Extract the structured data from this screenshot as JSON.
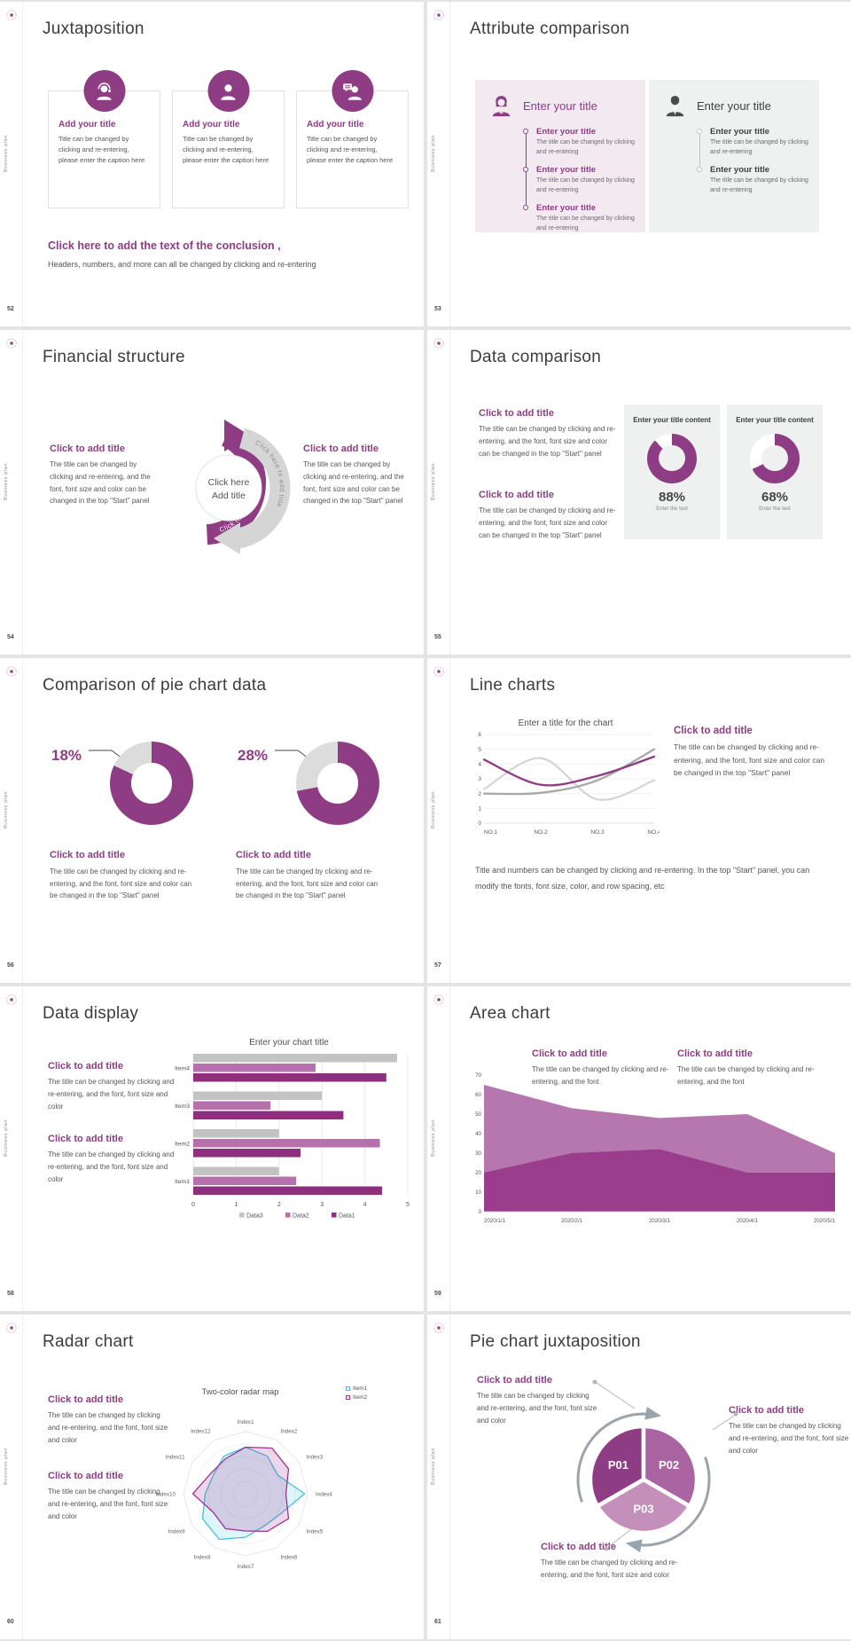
{
  "common": {
    "brand": "Business plan",
    "accent": "#8e3c84"
  },
  "strings": {
    "click_to_add_title": "Click to add title",
    "enter_your_title": "Enter your title",
    "body_start_panel": "The title can be changed by clicking and re-entering, and the font, font size and color can be changed in the top \"Start\" panel",
    "body_font_color": "The title can be changed by clicking and re-entering, and the font, font size and color",
    "body_font": "The title can be changed by clicking and re-entering, and the font",
    "body_short": "The title can be changed by clicking and re-entering"
  },
  "slides": {
    "s52": {
      "page": "52",
      "title": "Juxtaposition",
      "cards": [
        {
          "heading": "Add your title",
          "body": "Title can be changed by clicking and re-entering, please enter the caption here"
        },
        {
          "heading": "Add your title",
          "body": "Title can be changed by clicking and re-entering, please enter the caption here"
        },
        {
          "heading": "Add your title",
          "body": "Title can be changed by clicking and re-entering, please enter the caption here"
        }
      ],
      "conclusion_heading": "Click here to add the text of the conclusion ,",
      "conclusion_body": "Headers, numbers, and more can all be changed by clicking and re-entering"
    },
    "s53": {
      "page": "53",
      "title": "Attribute comparison",
      "left_heading": "Enter your title",
      "right_heading": "Enter your title",
      "left_items": [
        {
          "heading": "Enter your title",
          "body": "The title can be changed by clicking and re-entering"
        },
        {
          "heading": "Enter your title",
          "body": "The title can be changed by clicking and re-entering"
        },
        {
          "heading": "Enter your title",
          "body": "The title can be changed by clicking and re-entering"
        }
      ],
      "right_items": [
        {
          "heading": "Enter your title",
          "body": "The title can be changed by clicking and re-entering"
        },
        {
          "heading": "Enter your title",
          "body": "The title can be changed by clicking and re-entering"
        }
      ]
    },
    "s54": {
      "page": "54",
      "title": "Financial structure",
      "arc_label": "Click here to add title",
      "center_line1": "Click here",
      "center_line2": "Add title"
    },
    "s55": {
      "page": "55",
      "title": "Data comparison",
      "cards": [
        {
          "heading": "Enter your title content",
          "percent": "88%",
          "sub": "Enter the text"
        },
        {
          "heading": "Enter your title content",
          "percent": "68%",
          "sub": "Enter the text"
        }
      ]
    },
    "s56": {
      "page": "56",
      "title": "Comparison of pie chart data",
      "groups": [
        {
          "label": "18%"
        },
        {
          "label": "28%"
        }
      ]
    },
    "s57": {
      "page": "57",
      "title": "Line charts",
      "chart_title": "Enter a title for the chart",
      "note": "Title and numbers can be changed by clicking and re-entering. In the top \"Start\" panel, you can modify the fonts, font size, color, and row spacing, etc"
    },
    "s58": {
      "page": "58",
      "title": "Data display",
      "chart_title": "Enter your chart title"
    },
    "s59": {
      "page": "59",
      "title": "Area chart"
    },
    "s60": {
      "page": "60",
      "title": "Radar chart",
      "chart_title": "Two-color radar map"
    },
    "s61": {
      "page": "61",
      "title": "Pie chart juxtaposition"
    }
  },
  "chart_data": [
    {
      "id": "donut88",
      "type": "donut",
      "percent_accent": 88,
      "label": "88%",
      "color": "#8e3c84",
      "track": "#ffffff"
    },
    {
      "id": "donut68",
      "type": "donut",
      "percent_accent": 68,
      "label": "68%",
      "color": "#8e3c84",
      "track": "#ffffff"
    },
    {
      "id": "donut18",
      "type": "donut",
      "percent_accent": 82,
      "label": "18%",
      "color": "#8e3c84",
      "track": "#dcdcdc"
    },
    {
      "id": "donut28",
      "type": "donut",
      "percent_accent": 72,
      "label": "28%",
      "color": "#8e3c84",
      "track": "#dcdcdc"
    },
    {
      "id": "line57",
      "type": "line",
      "title": "Enter a title for the chart",
      "x": [
        "NO.1",
        "NO.2",
        "NO.3",
        "NO.4"
      ],
      "ylim": [
        0,
        6
      ],
      "yticks": [
        0,
        1,
        2,
        3,
        4,
        5,
        6
      ],
      "series": [
        {
          "name": "purple",
          "color": "#8e3c84",
          "values": [
            4.3,
            2.6,
            3.2,
            4.5
          ]
        },
        {
          "name": "gray-dark",
          "color": "#a8a8a8",
          "values": [
            2.0,
            2.05,
            2.9,
            5.0
          ]
        },
        {
          "name": "gray-light",
          "color": "#d6d6d6",
          "values": [
            2.3,
            4.4,
            1.6,
            2.9
          ]
        }
      ]
    },
    {
      "id": "bars58",
      "type": "bar-horizontal",
      "title": "Enter your chart title",
      "categories": [
        "Item1",
        "Item2",
        "Item3",
        "Item4"
      ],
      "xlim": [
        0,
        5
      ],
      "xticks": [
        0,
        1,
        2,
        3,
        4,
        5
      ],
      "series": [
        {
          "name": "Data1",
          "color": "#8e2f80",
          "values": [
            4.4,
            2.5,
            3.5,
            4.5
          ]
        },
        {
          "name": "Data2",
          "color": "#b671ac",
          "values": [
            2.4,
            4.35,
            1.8,
            2.85
          ]
        },
        {
          "name": "Data3",
          "color": "#c3c3c3",
          "values": [
            2.0,
            2.0,
            3.0,
            4.75
          ]
        }
      ]
    },
    {
      "id": "area59",
      "type": "area",
      "x": [
        "2020/1/1",
        "2020/2/1",
        "2020/3/1",
        "2020/4/1",
        "2020/5/1"
      ],
      "ylim": [
        0,
        70
      ],
      "yticks": [
        0,
        10,
        20,
        30,
        40,
        50,
        60,
        70
      ],
      "series": [
        {
          "name": "upper",
          "color": "#b577ad",
          "values": [
            65,
            53,
            48,
            50,
            30
          ]
        },
        {
          "name": "lower",
          "color": "#993d8c",
          "values": [
            20,
            30,
            32,
            20,
            20
          ]
        }
      ]
    },
    {
      "id": "radar60",
      "type": "radar",
      "title": "Two-color radar map",
      "rmax": 10,
      "axes": [
        "Index1",
        "Index2",
        "Index3",
        "Index4",
        "Index5",
        "Index6",
        "Index7",
        "Index8",
        "Index9",
        "Index10",
        "Index11",
        "Index12"
      ],
      "series": [
        {
          "name": "Item1",
          "color": "#45c1e0",
          "fill": "rgba(69,193,224,0.18)",
          "values": [
            7.5,
            7,
            6,
            9.5,
            6.5,
            6,
            7,
            8.5,
            8,
            6.5,
            6,
            7
          ]
        },
        {
          "name": "Item2",
          "color": "#a2308f",
          "fill": "rgba(162,48,143,0.20)",
          "values": [
            7.5,
            8.5,
            8,
            6.5,
            8,
            7,
            6,
            6.5,
            6,
            8.5,
            6.5,
            6.5
          ]
        }
      ]
    },
    {
      "id": "pie61",
      "type": "pie",
      "labels": [
        "P01",
        "P02",
        "P03"
      ],
      "values": [
        33.3,
        33.3,
        33.4
      ],
      "colors": [
        "#8e3c84",
        "#a964a1",
        "#c490bb"
      ]
    }
  ]
}
